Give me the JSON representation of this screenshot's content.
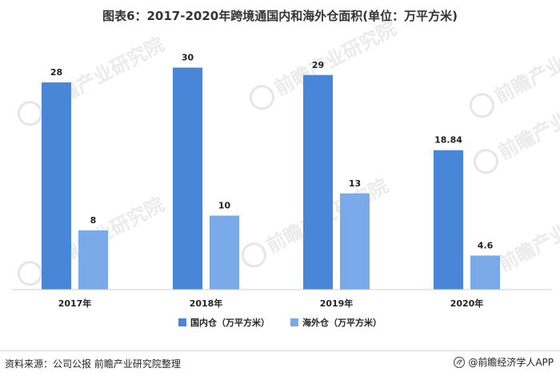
{
  "chart_data": {
    "type": "bar",
    "title": "图表6：2017-2020年跨境通国内和海外仓面积(单位：万平方米)",
    "categories": [
      "2017年",
      "2018年",
      "2019年",
      "2020年"
    ],
    "series": [
      {
        "name": "国内仓（万平方米）",
        "values": [
          28,
          30,
          29,
          18.84
        ],
        "labels": [
          "28",
          "30",
          "29",
          "18.84"
        ],
        "color": "#4a86d8"
      },
      {
        "name": "海外仓（万平方米）",
        "values": [
          8,
          10,
          13,
          4.6
        ],
        "labels": [
          "8",
          "10",
          "13",
          "4.6"
        ],
        "color": "#7aaae8"
      }
    ],
    "xlabel": "",
    "ylabel": "",
    "ylim": [
      0,
      30
    ],
    "grid": false,
    "legend_position": "bottom-center"
  },
  "footer": {
    "source": "资料来源：公司公报 前瞻产业研究院整理",
    "brand": "@前瞻经济学人APP"
  },
  "watermark": "前瞻产业研究院"
}
